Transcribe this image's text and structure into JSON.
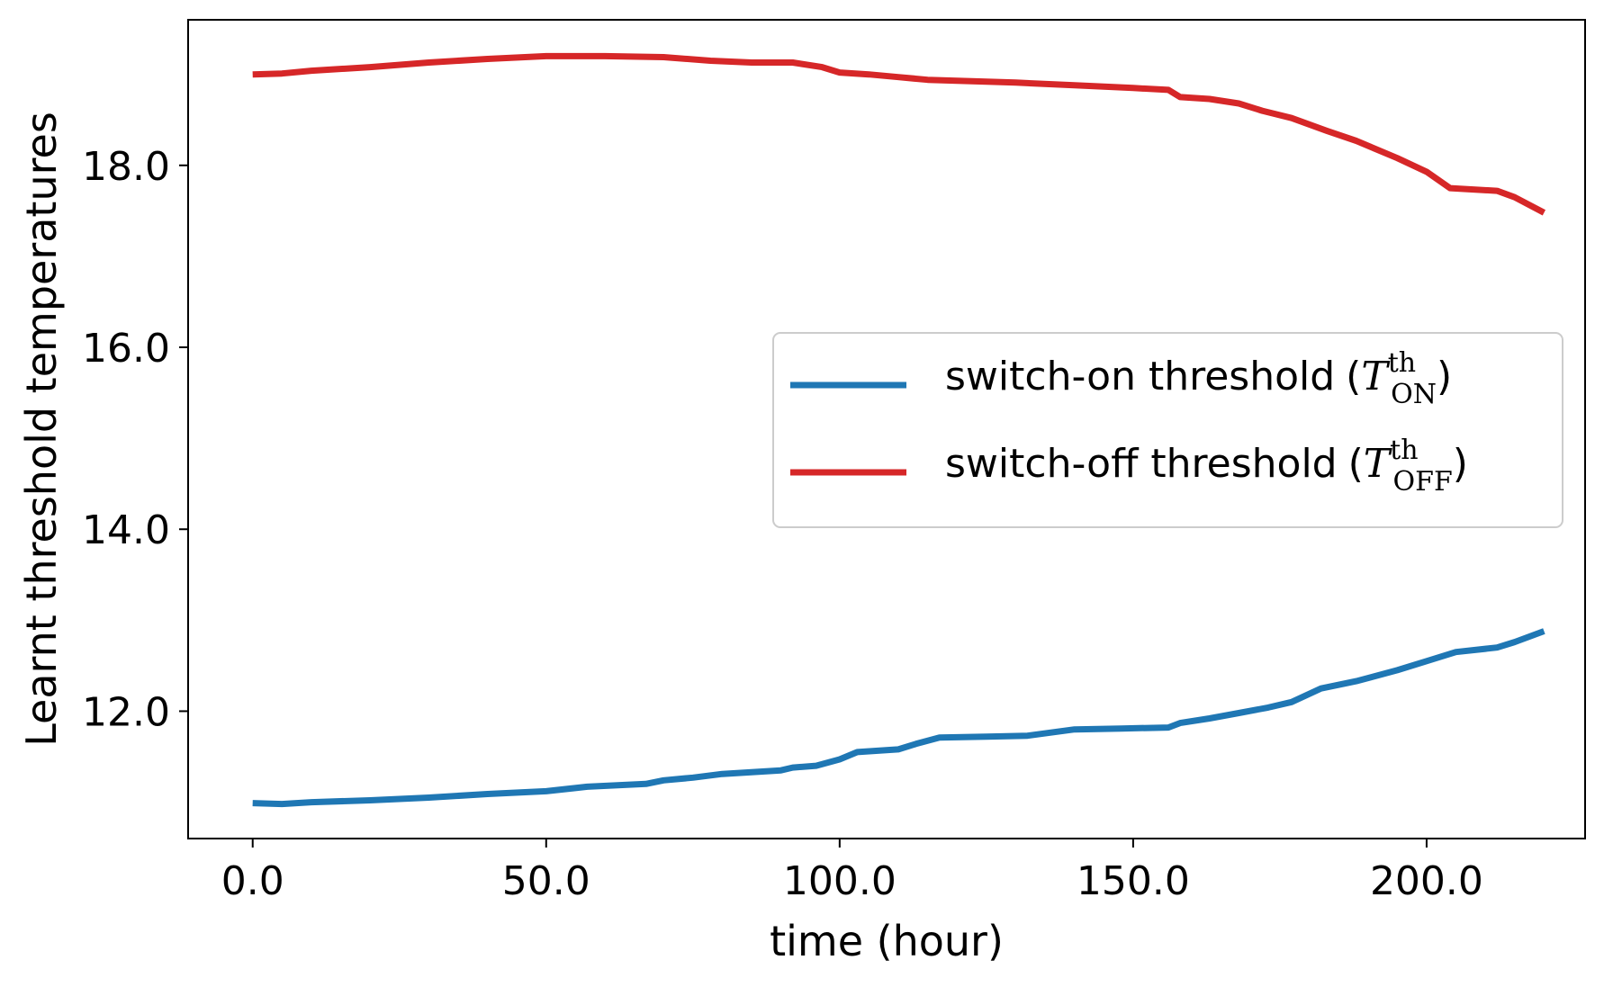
{
  "chart_data": {
    "type": "line",
    "title": "",
    "xlabel": "time (hour)",
    "ylabel": "Learnt threshold temperatures",
    "xlim": [
      -11,
      227
    ],
    "ylim": [
      10.6,
      19.6
    ],
    "x_ticks": [
      0,
      50,
      100,
      150,
      200
    ],
    "x_tick_labels": [
      "0.0",
      "50.0",
      "100.0",
      "150.0",
      "200.0"
    ],
    "y_ticks": [
      12,
      14,
      16,
      18
    ],
    "y_tick_labels": [
      "12.0",
      "14.0",
      "16.0",
      "18.0"
    ],
    "grid": false,
    "legend_position": "center-right",
    "series": [
      {
        "name": "switch-on threshold",
        "symbol": "T",
        "superscript": "th",
        "subscript": "ON",
        "color": "#1f77b4",
        "x": [
          0,
          5,
          10,
          20,
          30,
          40,
          50,
          57,
          67,
          70,
          75,
          80,
          90,
          92,
          96,
          100,
          103,
          110,
          113,
          117,
          125,
          132,
          140,
          148,
          156,
          158,
          163,
          168,
          173,
          177,
          182,
          188,
          195,
          200,
          205,
          212,
          215,
          220
        ],
        "values": [
          10.99,
          10.98,
          11.0,
          11.02,
          11.05,
          11.09,
          11.12,
          11.17,
          11.2,
          11.24,
          11.27,
          11.31,
          11.35,
          11.38,
          11.4,
          11.47,
          11.55,
          11.58,
          11.64,
          11.71,
          11.72,
          11.73,
          11.8,
          11.81,
          11.82,
          11.87,
          11.92,
          11.98,
          12.04,
          12.1,
          12.25,
          12.33,
          12.45,
          12.55,
          12.65,
          12.7,
          12.76,
          12.88
        ]
      },
      {
        "name": "switch-off threshold",
        "symbol": "T",
        "superscript": "th",
        "subscript": "OFF",
        "color": "#d62728",
        "x": [
          0,
          5,
          10,
          20,
          30,
          40,
          50,
          60,
          70,
          78,
          85,
          92,
          97,
          100,
          105,
          110,
          115,
          120,
          130,
          140,
          150,
          156,
          158,
          163,
          168,
          172,
          177,
          183,
          188,
          195,
          200,
          204,
          212,
          215,
          220
        ],
        "values": [
          19.0,
          19.01,
          19.04,
          19.08,
          19.13,
          19.17,
          19.2,
          19.2,
          19.19,
          19.15,
          19.13,
          19.13,
          19.08,
          19.02,
          19.0,
          18.97,
          18.94,
          18.93,
          18.91,
          18.88,
          18.85,
          18.83,
          18.75,
          18.73,
          18.68,
          18.6,
          18.52,
          18.38,
          18.27,
          18.08,
          17.93,
          17.75,
          17.72,
          17.65,
          17.48
        ]
      }
    ]
  }
}
